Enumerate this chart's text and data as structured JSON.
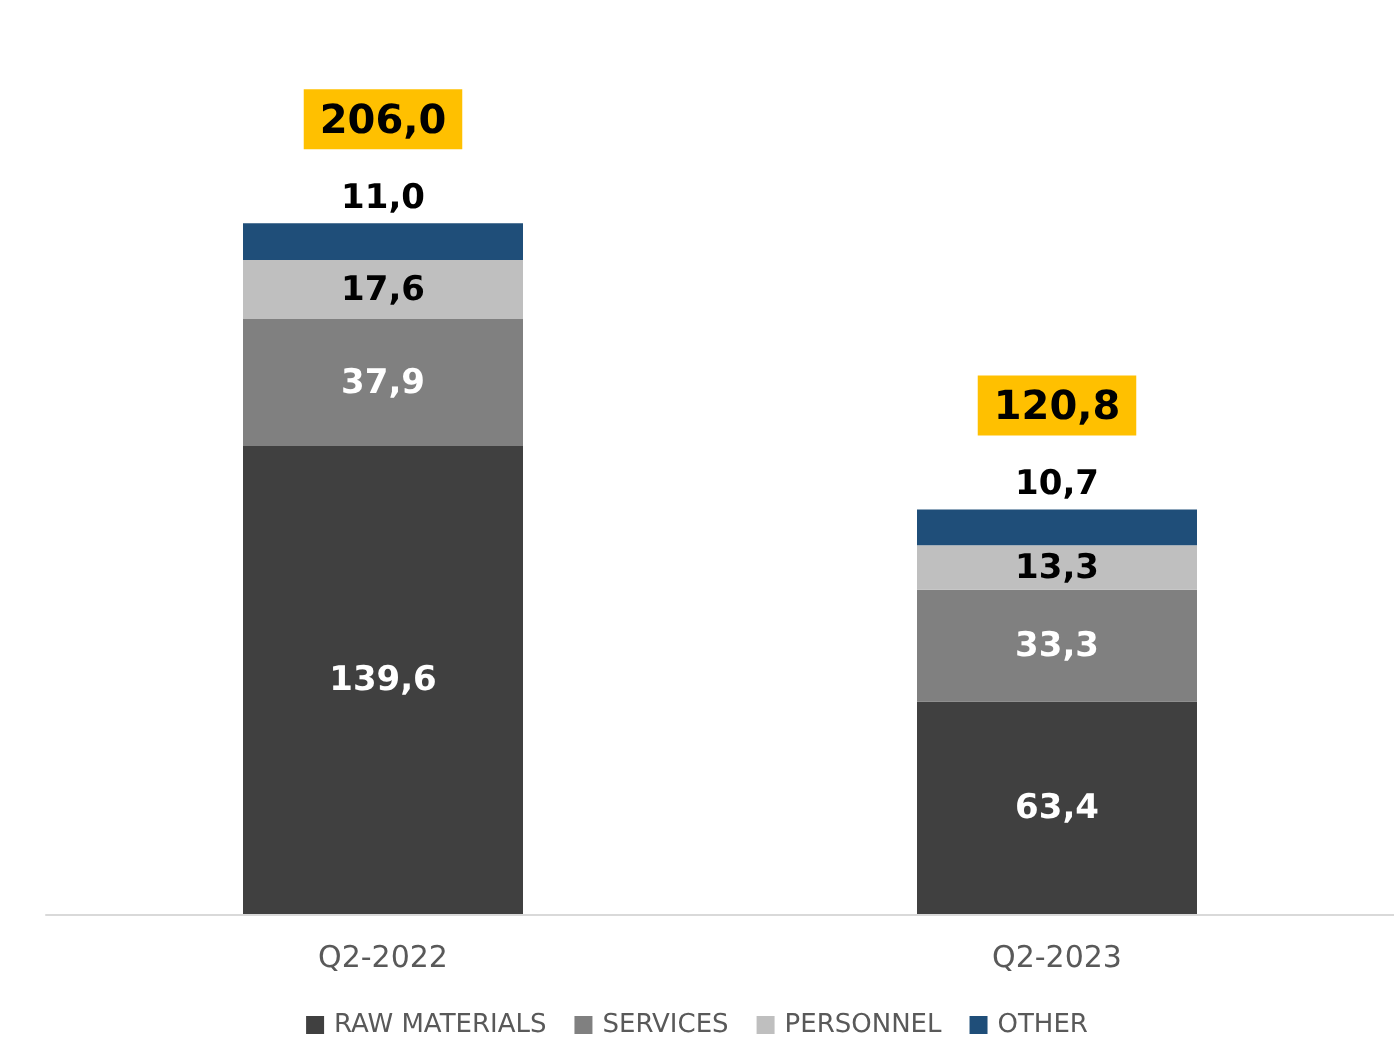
{
  "chart_data": {
    "type": "bar",
    "stacked": true,
    "categories": [
      "Q2-2022",
      "Q2-2023"
    ],
    "series": [
      {
        "name": "RAW MATERIALS",
        "color": "#404040",
        "values": [
          139.6,
          63.4
        ],
        "value_labels": [
          "139,6",
          "63,4"
        ]
      },
      {
        "name": "SERVICES",
        "color": "#808080",
        "values": [
          37.9,
          33.3
        ],
        "value_labels": [
          "37,9",
          "33,3"
        ]
      },
      {
        "name": "PERSONNEL",
        "color": "#bfbfbf",
        "values": [
          17.6,
          13.3
        ],
        "value_labels": [
          "17,6",
          "13,3"
        ]
      },
      {
        "name": "OTHER",
        "color": "#1f4e79",
        "values": [
          11.0,
          10.7
        ],
        "value_labels": [
          "11,0",
          "10,7"
        ]
      }
    ],
    "totals": [
      "206,0",
      "120,8"
    ],
    "legend": "bottom"
  }
}
